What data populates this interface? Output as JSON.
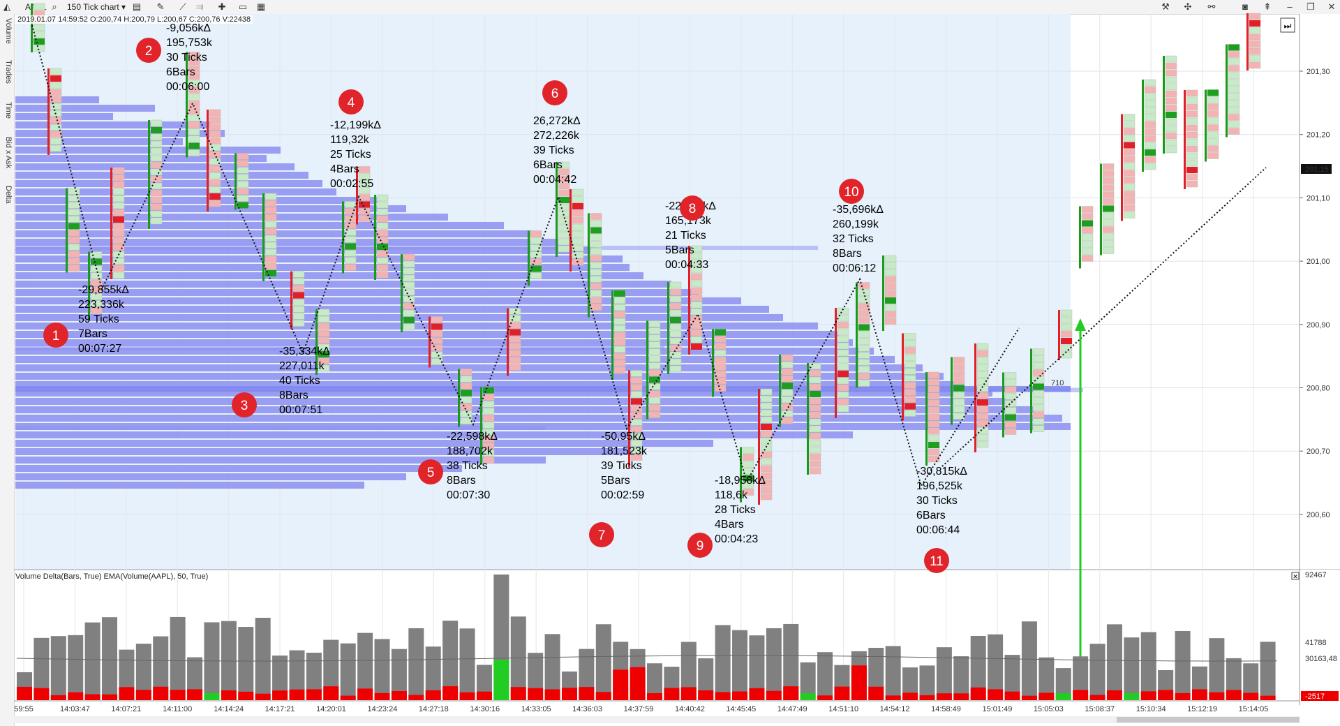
{
  "toolbar": {
    "symbol": "AAPL",
    "chart_type": "150 Tick chart",
    "icons_left": [
      "search-icon",
      "chart-style-icon",
      "draw-icon",
      "indicator-icon",
      "layout-icon",
      "add-icon",
      "window-icon",
      "template-icon"
    ],
    "icons_right": [
      "tools-icon",
      "crosshair-icon",
      "link-icon",
      "camera-icon",
      "pin-icon",
      "minimize-icon",
      "restore-icon",
      "close-icon"
    ]
  },
  "side_tabs": [
    "Volume",
    "Trades",
    "Time",
    "Bid x Ask",
    "Delta"
  ],
  "ohlc_text": "2019.01.07 14:59:52 O:200,74 H:200,79 L:200,67 C:200,76 V:22438",
  "price_axis": {
    "labels": [
      "201,30",
      "201,20",
      "201,10",
      "201,00",
      "200,90",
      "200,80",
      "200,70",
      "200,60"
    ],
    "current_price": "201,15",
    "poc_label": "710"
  },
  "time_axis": [
    "59:55",
    "14:03:47",
    "14:07:21",
    "14:11:00",
    "14:14:24",
    "14:17:21",
    "14:20:01",
    "14:23:24",
    "14:27:18",
    "14:30:16",
    "14:33:05",
    "14:36:03",
    "14:37:59",
    "14:40:42",
    "14:45:45",
    "14:47:49",
    "14:51:10",
    "14:54:12",
    "14:58:49",
    "15:01:49",
    "15:05:03",
    "15:08:37",
    "15:10:34",
    "15:12:19",
    "15:14:05"
  ],
  "indicator": {
    "title": "Volume Delta(Bars, True) EMA(Volume(AAPL), 50, True)",
    "axis_labels": {
      "top": "92467",
      "mid": "41788",
      "ema": "30163,48",
      "delta": "-2517"
    },
    "colors": {
      "volume": "#808080",
      "sell": "#ee0000",
      "buy": "#22cc22",
      "ema": "#666666"
    }
  },
  "wave_annotations": [
    {
      "n": "1",
      "lines": [
        "-29,855kΔ",
        "223,336k",
        "59 Ticks",
        "7Bars",
        "00:07:27"
      ]
    },
    {
      "n": "2",
      "lines": [
        "-9,056kΔ",
        "195,753k",
        "30 Ticks",
        "6Bars",
        "00:06:00"
      ]
    },
    {
      "n": "3",
      "lines": [
        "-35,334kΔ",
        "227,011k",
        "40 Ticks",
        "8Bars",
        "00:07:51"
      ]
    },
    {
      "n": "4",
      "lines": [
        "-12,199kΔ",
        "119,32k",
        "25 Ticks",
        "4Bars",
        "00:02:55"
      ]
    },
    {
      "n": "5",
      "lines": [
        "-22,598kΔ",
        "188,702k",
        "38 Ticks",
        "8Bars",
        "00:07:30"
      ]
    },
    {
      "n": "6",
      "lines": [
        "26,272kΔ",
        "272,226k",
        "39 Ticks",
        "6Bars",
        "00:04:42"
      ]
    },
    {
      "n": "7",
      "lines": [
        "-50,95kΔ",
        "181,523k",
        "39 Ticks",
        "5Bars",
        "00:02:59"
      ]
    },
    {
      "n": "8",
      "lines": [
        "-22,162kΔ",
        "165,173k",
        "21 Ticks",
        "5Bars",
        "00:04:33"
      ]
    },
    {
      "n": "9",
      "lines": [
        "-18,958kΔ",
        "118,6k",
        "28 Ticks",
        "4Bars",
        "00:04:23"
      ]
    },
    {
      "n": "10",
      "lines": [
        "-35,696kΔ",
        "260,199k",
        "32 Ticks",
        "8Bars",
        "00:06:12"
      ]
    },
    {
      "n": "11",
      "lines": [
        "-30,815kΔ",
        "196,525k",
        "30 Ticks",
        "6Bars",
        "00:06:44"
      ]
    }
  ],
  "colors": {
    "profile": "#8b8ff0",
    "zone": "#e6f1fc",
    "up": "#1a9a1a",
    "down": "#e01f26",
    "marker": "#e0242a",
    "signal_arrow": "#22cc22"
  }
}
